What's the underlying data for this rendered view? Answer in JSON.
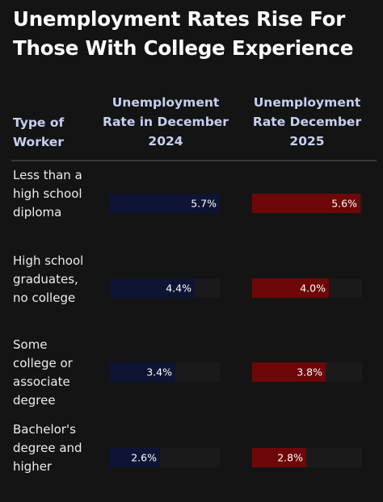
{
  "title": "Unemployment Rates Rise For Those With College Experience",
  "chart_data": {
    "type": "table",
    "columns": [
      "Type of Worker",
      "Unemployment Rate in December 2024",
      "Unemployment Rate December 2025"
    ],
    "rows": [
      {
        "label": "Less than a high school diploma",
        "values": [
          5.7,
          5.6
        ],
        "display": [
          "5.7%",
          "5.6%"
        ]
      },
      {
        "label": "High school graduates, no college",
        "values": [
          4.4,
          4.0
        ],
        "display": [
          "4.4%",
          "4.0%"
        ]
      },
      {
        "label": "Some college or associate degree",
        "values": [
          3.4,
          3.8
        ],
        "display": [
          "3.4%",
          "3.8%"
        ]
      },
      {
        "label": "Bachelor's degree and higher",
        "values": [
          2.6,
          2.8
        ],
        "display": [
          "2.6%",
          "2.8%"
        ]
      }
    ],
    "scale_max": 5.7,
    "colors": {
      "col_2024": "#0e1433",
      "col_2025": "#6e0707",
      "header": "#c5cff0",
      "background": "#141414"
    }
  }
}
